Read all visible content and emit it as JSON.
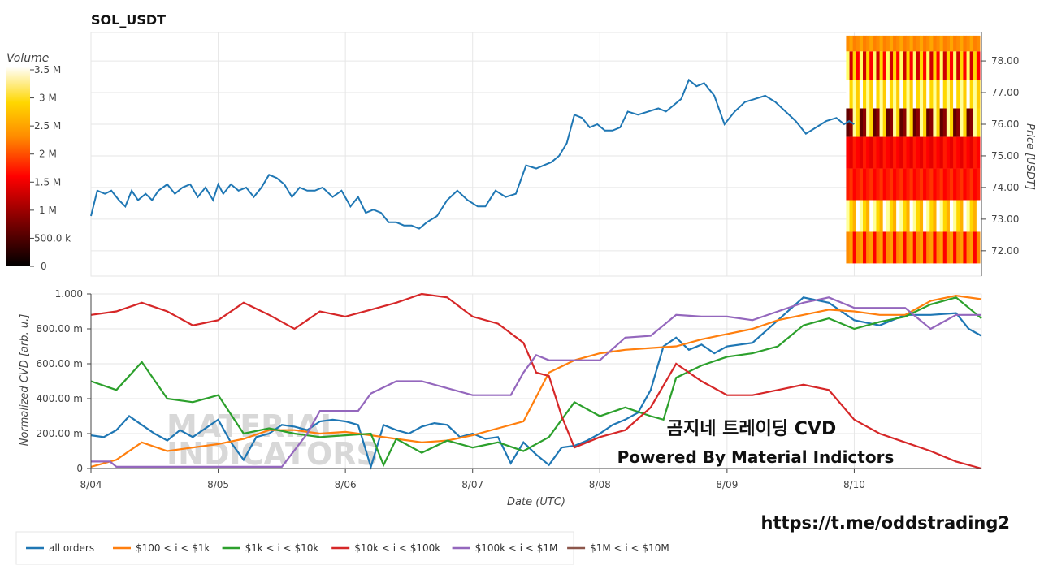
{
  "chart_title": "SOL_USDT",
  "colorbar": {
    "label": "Volume",
    "ticks": [
      "3.5 M",
      "3 M",
      "2.5 M",
      "2 M",
      "1.5 M",
      "1 M",
      "500.0 k",
      "0"
    ]
  },
  "x_axis": {
    "label": "Date (UTC)",
    "ticks": [
      "8/04",
      "8/05",
      "8/06",
      "8/07",
      "8/08",
      "8/09",
      "8/10"
    ]
  },
  "price_axis": {
    "label": "Price [USDT]",
    "ticks": [
      "72.00",
      "73.00",
      "74.00",
      "75.00",
      "76.00",
      "77.00",
      "78.00"
    ]
  },
  "cvd_axis": {
    "label": "Normalized CVD [arb. u.]",
    "ticks": [
      "0",
      "200.00 m",
      "400.00 m",
      "600.00 m",
      "800.00 m",
      "1.000"
    ]
  },
  "overlay": {
    "line1": "곰지네 트레이딩 CVD",
    "line2": "Powered By Material Indictors",
    "link": "https://t.me/oddstrading2",
    "watermark1": "MATERIAL",
    "watermark2": "INDICATORS"
  },
  "legend": [
    {
      "label": "all orders",
      "color": "#1f77b4"
    },
    {
      "label": "$100 < i < $1k",
      "color": "#ff7f0e"
    },
    {
      "label": "$1k < i < $10k",
      "color": "#2ca02c"
    },
    {
      "label": "$10k < i < $100k",
      "color": "#d62728"
    },
    {
      "label": "$100k < i < $1M",
      "color": "#9467bd"
    },
    {
      "label": "$1M < i < $10M",
      "color": "#8c564b"
    }
  ],
  "chart_data": [
    {
      "type": "line",
      "title": "SOL_USDT",
      "ylabel": "Price [USDT]",
      "ylim": [
        71.2,
        78.9
      ],
      "xlim": [
        0,
        7
      ],
      "x_tick_labels": [
        "8/04",
        "8/05",
        "8/06",
        "8/07",
        "8/08",
        "8/09",
        "8/10"
      ],
      "series": [
        {
          "color": "#1f77b4",
          "x": [
            0,
            0.05,
            0.11,
            0.16,
            0.22,
            0.27,
            0.32,
            0.37,
            0.43,
            0.48,
            0.53,
            0.6,
            0.66,
            0.72,
            0.78,
            0.84,
            0.9,
            0.96,
            1.0,
            1.04,
            1.1,
            1.16,
            1.22,
            1.28,
            1.34,
            1.4,
            1.46,
            1.52,
            1.58,
            1.64,
            1.7,
            1.76,
            1.82,
            1.9,
            1.97,
            2.04,
            2.1,
            2.16,
            2.22,
            2.28,
            2.34,
            2.4,
            2.46,
            2.52,
            2.58,
            2.64,
            2.72,
            2.8,
            2.88,
            2.96,
            3.04,
            3.1,
            3.18,
            3.26,
            3.34,
            3.42,
            3.5,
            3.56,
            3.62,
            3.68,
            3.74,
            3.8,
            3.86,
            3.92,
            3.98,
            4.04,
            4.1,
            4.16,
            4.22,
            4.3,
            4.38,
            4.46,
            4.52,
            4.58,
            4.64,
            4.7,
            4.76,
            4.82,
            4.9,
            4.98,
            5.06,
            5.14,
            5.22,
            5.3,
            5.38,
            5.46,
            5.54,
            5.62,
            5.7,
            5.78,
            5.86,
            5.92,
            5.96,
            6.0
          ],
          "values": [
            73.1,
            73.9,
            73.8,
            73.9,
            73.6,
            73.4,
            73.9,
            73.6,
            73.8,
            73.6,
            73.9,
            74.1,
            73.8,
            74.0,
            74.1,
            73.7,
            74.0,
            73.6,
            74.1,
            73.8,
            74.1,
            73.9,
            74.0,
            73.7,
            74.0,
            74.4,
            74.3,
            74.1,
            73.7,
            74.0,
            73.9,
            73.9,
            74.0,
            73.7,
            73.9,
            73.4,
            73.7,
            73.2,
            73.3,
            73.2,
            72.9,
            72.9,
            72.8,
            72.8,
            72.7,
            72.9,
            73.1,
            73.6,
            73.9,
            73.6,
            73.4,
            73.4,
            73.9,
            73.7,
            73.8,
            74.7,
            74.6,
            74.7,
            74.8,
            75.0,
            75.4,
            76.3,
            76.2,
            75.9,
            76.0,
            75.8,
            75.8,
            75.9,
            76.4,
            76.3,
            76.4,
            76.5,
            76.4,
            76.6,
            76.8,
            77.4,
            77.2,
            77.3,
            76.9,
            76.0,
            76.4,
            76.7,
            76.8,
            76.9,
            76.7,
            76.4,
            76.1,
            75.7,
            75.9,
            76.1,
            76.2,
            76.0,
            76.1,
            76.0
          ]
        }
      ],
      "heatmap": {
        "x_range": [
          6.0,
          7.0
        ],
        "price_bins": [
          78.8,
          78.3,
          77.4,
          76.5,
          75.6,
          74.6,
          73.6,
          72.6,
          71.6
        ],
        "volume_color_scale": [
          "#000000",
          "#8b0000",
          "#ff0000",
          "#ff8c00",
          "#ffd700",
          "#ffff99",
          "#ffffff"
        ]
      }
    },
    {
      "type": "line",
      "ylabel": "Normalized CVD [arb. u.]",
      "xlabel": "Date (UTC)",
      "ylim": [
        0,
        1.0
      ],
      "xlim": [
        0,
        7
      ],
      "x_tick_labels": [
        "8/04",
        "8/05",
        "8/06",
        "8/07",
        "8/08",
        "8/09",
        "8/10"
      ],
      "series": [
        {
          "name": "all orders",
          "color": "#1f77b4",
          "x": [
            0,
            0.1,
            0.2,
            0.3,
            0.4,
            0.5,
            0.6,
            0.7,
            0.8,
            0.9,
            1.0,
            1.1,
            1.2,
            1.3,
            1.4,
            1.5,
            1.6,
            1.7,
            1.8,
            1.9,
            2.0,
            2.1,
            2.2,
            2.3,
            2.4,
            2.5,
            2.6,
            2.7,
            2.8,
            2.9,
            3.0,
            3.1,
            3.2,
            3.3,
            3.4,
            3.5,
            3.6,
            3.7,
            3.8,
            3.9,
            4.0,
            4.1,
            4.2,
            4.3,
            4.4,
            4.5,
            4.6,
            4.7,
            4.8,
            4.9,
            5.0,
            5.2,
            5.4,
            5.6,
            5.8,
            6.0,
            6.2,
            6.4,
            6.6,
            6.8,
            6.9,
            7.0
          ],
          "values": [
            0.19,
            0.18,
            0.22,
            0.3,
            0.25,
            0.2,
            0.16,
            0.22,
            0.18,
            0.23,
            0.28,
            0.15,
            0.05,
            0.18,
            0.2,
            0.25,
            0.24,
            0.22,
            0.27,
            0.28,
            0.27,
            0.25,
            0.01,
            0.25,
            0.22,
            0.2,
            0.24,
            0.26,
            0.25,
            0.18,
            0.2,
            0.17,
            0.18,
            0.03,
            0.15,
            0.08,
            0.02,
            0.12,
            0.13,
            0.16,
            0.2,
            0.25,
            0.28,
            0.32,
            0.45,
            0.7,
            0.75,
            0.68,
            0.71,
            0.66,
            0.7,
            0.72,
            0.85,
            0.98,
            0.95,
            0.85,
            0.82,
            0.88,
            0.88,
            0.89,
            0.8,
            0.76
          ]
        },
        {
          "name": "$100 < i < $1k",
          "color": "#ff7f0e",
          "x": [
            0,
            0.2,
            0.4,
            0.6,
            0.8,
            1.0,
            1.2,
            1.4,
            1.6,
            1.8,
            2.0,
            2.2,
            2.4,
            2.6,
            2.8,
            3.0,
            3.2,
            3.4,
            3.6,
            3.8,
            4.0,
            4.2,
            4.4,
            4.6,
            4.8,
            5.0,
            5.2,
            5.4,
            5.6,
            5.8,
            6.0,
            6.2,
            6.4,
            6.6,
            6.8,
            7.0
          ],
          "values": [
            0.01,
            0.05,
            0.15,
            0.1,
            0.12,
            0.14,
            0.17,
            0.22,
            0.22,
            0.2,
            0.21,
            0.19,
            0.17,
            0.15,
            0.16,
            0.19,
            0.23,
            0.27,
            0.55,
            0.62,
            0.66,
            0.68,
            0.69,
            0.7,
            0.74,
            0.77,
            0.8,
            0.85,
            0.88,
            0.91,
            0.9,
            0.88,
            0.88,
            0.96,
            0.99,
            0.97
          ]
        },
        {
          "name": "$1k < i < $10k",
          "color": "#2ca02c",
          "x": [
            0,
            0.2,
            0.4,
            0.6,
            0.8,
            1.0,
            1.2,
            1.4,
            1.6,
            1.8,
            2.0,
            2.2,
            2.3,
            2.4,
            2.6,
            2.8,
            3.0,
            3.2,
            3.4,
            3.6,
            3.8,
            4.0,
            4.2,
            4.4,
            4.5,
            4.6,
            4.8,
            5.0,
            5.2,
            5.4,
            5.6,
            5.8,
            6.0,
            6.2,
            6.4,
            6.6,
            6.8,
            7.0
          ],
          "values": [
            0.5,
            0.45,
            0.61,
            0.4,
            0.38,
            0.42,
            0.2,
            0.23,
            0.2,
            0.18,
            0.19,
            0.2,
            0.02,
            0.17,
            0.09,
            0.16,
            0.12,
            0.15,
            0.1,
            0.18,
            0.38,
            0.3,
            0.35,
            0.3,
            0.28,
            0.52,
            0.59,
            0.64,
            0.66,
            0.7,
            0.82,
            0.86,
            0.8,
            0.84,
            0.87,
            0.94,
            0.98,
            0.86
          ]
        },
        {
          "name": "$10k < i < $100k",
          "color": "#d62728",
          "x": [
            0,
            0.2,
            0.4,
            0.6,
            0.8,
            1.0,
            1.2,
            1.4,
            1.6,
            1.8,
            2.0,
            2.2,
            2.4,
            2.6,
            2.8,
            3.0,
            3.2,
            3.4,
            3.5,
            3.6,
            3.7,
            3.8,
            4.0,
            4.2,
            4.4,
            4.6,
            4.8,
            5.0,
            5.2,
            5.4,
            5.6,
            5.8,
            6.0,
            6.2,
            6.4,
            6.6,
            6.8,
            7.0
          ],
          "values": [
            0.88,
            0.9,
            0.95,
            0.9,
            0.82,
            0.85,
            0.95,
            0.88,
            0.8,
            0.9,
            0.87,
            0.91,
            0.95,
            1.0,
            0.98,
            0.87,
            0.83,
            0.72,
            0.55,
            0.53,
            0.3,
            0.12,
            0.18,
            0.22,
            0.35,
            0.6,
            0.5,
            0.42,
            0.42,
            0.45,
            0.48,
            0.45,
            0.28,
            0.2,
            0.15,
            0.1,
            0.04,
            0.0
          ]
        },
        {
          "name": "$100k < i < $1M",
          "color": "#9467bd",
          "x": [
            0,
            0.15,
            0.2,
            1.0,
            1.5,
            1.7,
            1.8,
            2.0,
            2.1,
            2.2,
            2.4,
            2.6,
            3.0,
            3.3,
            3.4,
            3.5,
            3.6,
            4.0,
            4.2,
            4.4,
            4.6,
            4.8,
            5.0,
            5.2,
            5.4,
            5.6,
            5.8,
            6.0,
            6.2,
            6.4,
            6.6,
            6.8,
            7.0
          ],
          "values": [
            0.04,
            0.04,
            0.01,
            0.01,
            0.01,
            0.2,
            0.33,
            0.33,
            0.33,
            0.43,
            0.5,
            0.5,
            0.42,
            0.42,
            0.55,
            0.65,
            0.62,
            0.62,
            0.75,
            0.76,
            0.88,
            0.87,
            0.87,
            0.85,
            0.9,
            0.95,
            0.98,
            0.92,
            0.92,
            0.92,
            0.8,
            0.88,
            0.88
          ]
        },
        {
          "name": "$1M < i < $10M",
          "color": "#8c564b",
          "x": [],
          "values": []
        }
      ]
    }
  ]
}
